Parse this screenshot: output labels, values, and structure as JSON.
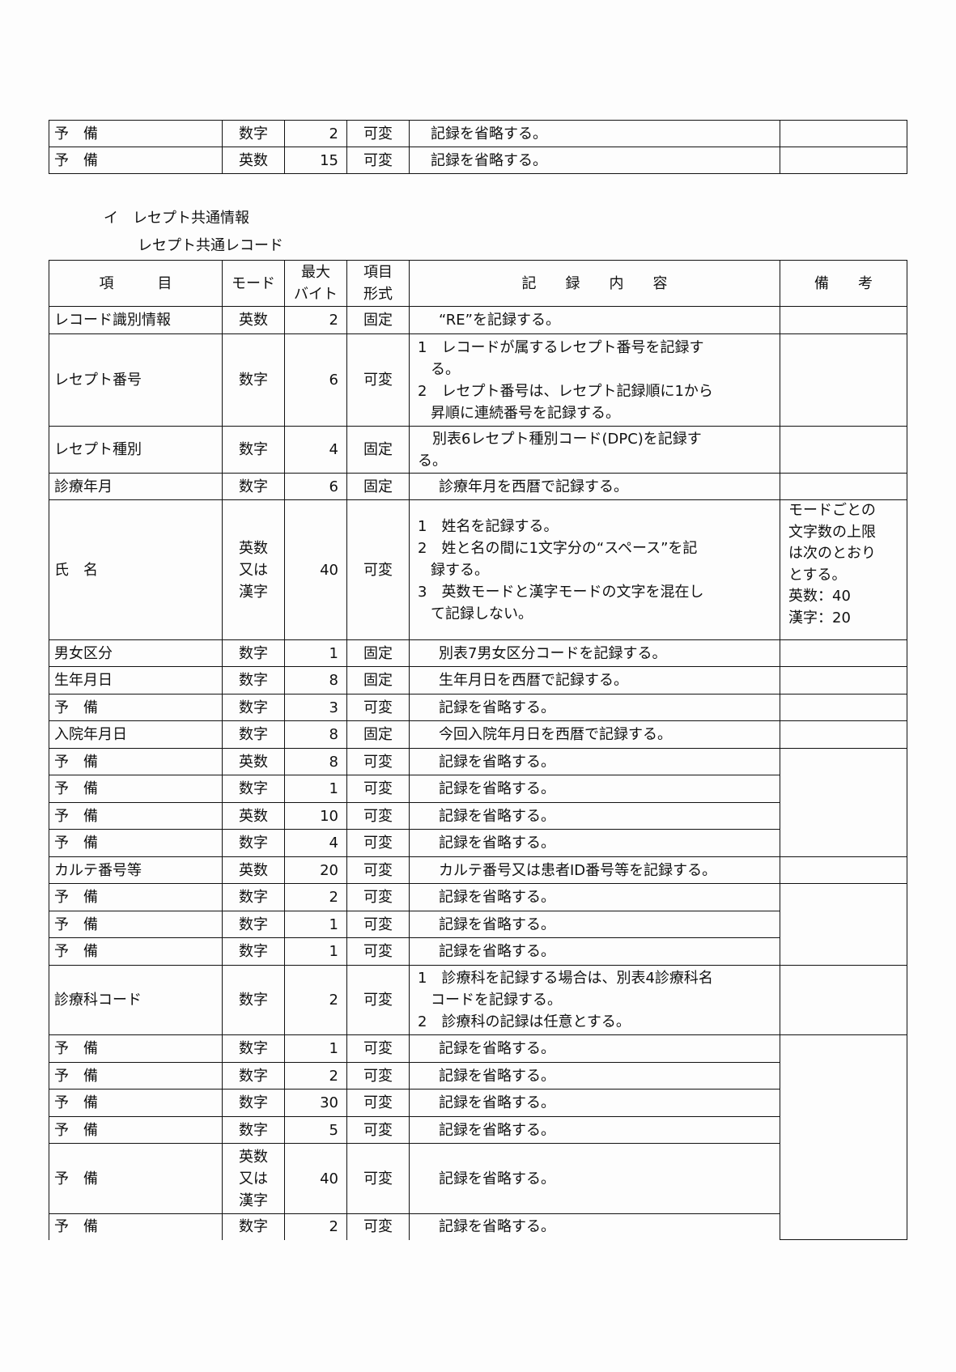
{
  "top_table": {
    "rows": [
      {
        "item": "予　備",
        "mode": "数字",
        "bytes": "2",
        "format": "可変",
        "desc": "記録を省略する。"
      },
      {
        "item": "予　備",
        "mode": "英数",
        "bytes": "15",
        "format": "可変",
        "desc": "記録を省略する。"
      }
    ]
  },
  "section_heading": "イ　レセプト共通情報",
  "record_heading": "レセプト共通レコード",
  "main_table": {
    "headers": {
      "item": "項　　　目",
      "mode": "モード",
      "bytes": [
        "最大",
        "バイト"
      ],
      "format": [
        "項目",
        "形式"
      ],
      "desc": "記　　録　　内　　容",
      "remarks": "備　　考"
    },
    "rows": [
      {
        "item": "レコード識別情報",
        "mode": [
          "英数"
        ],
        "bytes": "2",
        "format": "固定",
        "desc": [
          {
            "t": "“RE”を記録する。",
            "c": "ind"
          }
        ]
      },
      {
        "item": "レセプト番号",
        "mode": [
          "数字"
        ],
        "bytes": "6",
        "format": "可変",
        "desc": [
          {
            "t": "1　レコードが属するレセプト番号を記録す"
          },
          {
            "t": "る。",
            "c": "hang"
          },
          {
            "t": "2　レセプト番号は、レセプト記録順に1から"
          },
          {
            "t": "昇順に連続番号を記録する。",
            "c": "hang"
          }
        ]
      },
      {
        "item": "レセプト種別",
        "mode": [
          "数字"
        ],
        "bytes": "4",
        "format": "固定",
        "desc": [
          {
            "t": "　別表6レセプト種別コード(DPC)を記録す"
          },
          {
            "t": "る。"
          }
        ]
      },
      {
        "item": "診療年月",
        "mode": [
          "数字"
        ],
        "bytes": "6",
        "format": "固定",
        "desc": [
          {
            "t": "診療年月を西暦で記録する。",
            "c": "ind"
          }
        ]
      },
      {
        "item": "氏　名",
        "mode": [
          "英数",
          "又は",
          "漢字"
        ],
        "bytes": "40",
        "format": "可変",
        "desc": [
          {
            "t": "1　姓名を記録する。"
          },
          {
            "t": "2　姓と名の間に1文字分の“スペース”を記"
          },
          {
            "t": "録する。",
            "c": "hang"
          },
          {
            "t": "3　英数モードと漢字モードの文字を混在し"
          },
          {
            "t": "て記録しない。",
            "c": "hang"
          }
        ],
        "remarks": [
          "モードごとの",
          "文字数の上限",
          "は次のとおり",
          "とする。",
          "英数：40",
          "漢字：20"
        ]
      },
      {
        "item": "男女区分",
        "mode": [
          "数字"
        ],
        "bytes": "1",
        "format": "固定",
        "desc": [
          {
            "t": "別表7男女区分コードを記録する。",
            "c": "ind"
          }
        ]
      },
      {
        "item": "生年月日",
        "mode": [
          "数字"
        ],
        "bytes": "8",
        "format": "固定",
        "desc": [
          {
            "t": "生年月日を西暦で記録する。",
            "c": "ind"
          }
        ]
      },
      {
        "item": "予　備",
        "mode": [
          "数字"
        ],
        "bytes": "3",
        "format": "可変",
        "desc": [
          {
            "t": "記録を省略する。",
            "c": "ind"
          }
        ]
      },
      {
        "item": "入院年月日",
        "mode": [
          "数字"
        ],
        "bytes": "8",
        "format": "固定",
        "desc": [
          {
            "t": "今回入院年月日を西暦で記録する。",
            "c": "ind"
          }
        ]
      },
      {
        "item": "予　備",
        "mode": [
          "英数"
        ],
        "bytes": "8",
        "format": "可変",
        "desc": [
          {
            "t": "記録を省略する。",
            "c": "ind"
          }
        ]
      },
      {
        "item": "予　備",
        "mode": [
          "数字"
        ],
        "bytes": "1",
        "format": "可変",
        "desc": [
          {
            "t": "記録を省略する。",
            "c": "ind"
          }
        ]
      },
      {
        "item": "予　備",
        "mode": [
          "英数"
        ],
        "bytes": "10",
        "format": "可変",
        "desc": [
          {
            "t": "記録を省略する。",
            "c": "ind"
          }
        ]
      },
      {
        "item": "予　備",
        "mode": [
          "数字"
        ],
        "bytes": "4",
        "format": "可変",
        "desc": [
          {
            "t": "記録を省略する。",
            "c": "ind"
          }
        ]
      },
      {
        "item": "カルテ番号等",
        "mode": [
          "英数"
        ],
        "bytes": "20",
        "format": "可変",
        "desc": [
          {
            "t": "カルテ番号又は患者ID番号等を記録する。",
            "c": "ind"
          }
        ]
      },
      {
        "item": "予　備",
        "mode": [
          "数字"
        ],
        "bytes": "2",
        "format": "可変",
        "desc": [
          {
            "t": "記録を省略する。",
            "c": "ind"
          }
        ]
      },
      {
        "item": "予　備",
        "mode": [
          "数字"
        ],
        "bytes": "1",
        "format": "可変",
        "desc": [
          {
            "t": "記録を省略する。",
            "c": "ind"
          }
        ]
      },
      {
        "item": "予　備",
        "mode": [
          "数字"
        ],
        "bytes": "1",
        "format": "可変",
        "desc": [
          {
            "t": "記録を省略する。",
            "c": "ind"
          }
        ]
      },
      {
        "item": "診療科コード",
        "mode": [
          "数字"
        ],
        "bytes": "2",
        "format": "可変",
        "desc": [
          {
            "t": "1　診療科を記録する場合は、別表4診療科名"
          },
          {
            "t": "コードを記録する。",
            "c": "hang"
          },
          {
            "t": "2　診療科の記録は任意とする。"
          }
        ]
      },
      {
        "item": "予　備",
        "mode": [
          "数字"
        ],
        "bytes": "1",
        "format": "可変",
        "desc": [
          {
            "t": "記録を省略する。",
            "c": "ind"
          }
        ]
      },
      {
        "item": "予　備",
        "mode": [
          "数字"
        ],
        "bytes": "2",
        "format": "可変",
        "desc": [
          {
            "t": "記録を省略する。",
            "c": "ind"
          }
        ]
      },
      {
        "item": "予　備",
        "mode": [
          "数字"
        ],
        "bytes": "30",
        "format": "可変",
        "desc": [
          {
            "t": "記録を省略する。",
            "c": "ind"
          }
        ]
      },
      {
        "item": "予　備",
        "mode": [
          "数字"
        ],
        "bytes": "5",
        "format": "可変",
        "desc": [
          {
            "t": "記録を省略する。",
            "c": "ind"
          }
        ]
      },
      {
        "item": "予　備",
        "mode": [
          "英数",
          "又は",
          "漢字"
        ],
        "bytes": "40",
        "format": "可変",
        "desc": [
          {
            "t": "記録を省略する。",
            "c": "ind"
          }
        ]
      },
      {
        "item": "予　備",
        "mode": [
          "数字"
        ],
        "bytes": "2",
        "format": "可変",
        "desc": [
          {
            "t": "記録を省略する。",
            "c": "ind"
          }
        ]
      }
    ]
  }
}
